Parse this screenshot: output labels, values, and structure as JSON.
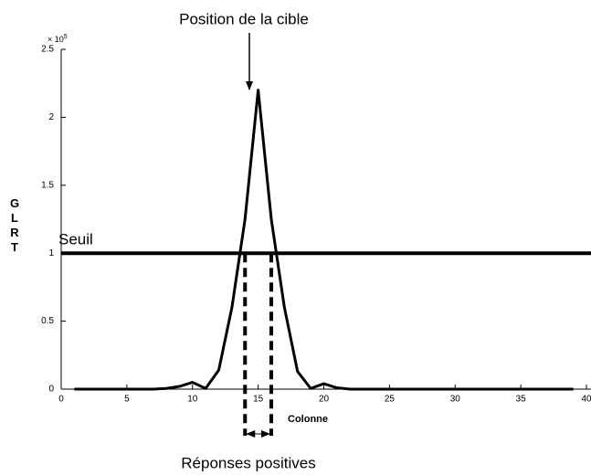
{
  "chart_data": {
    "type": "line",
    "title": "Position de la cible",
    "xlabel": "Colonne",
    "ylabel": "GLRT",
    "y_multiplier": {
      "base": "× 10",
      "exponent": "5"
    },
    "x": [
      1,
      2,
      3,
      4,
      5,
      6,
      7,
      8,
      9,
      10,
      11,
      12,
      13,
      14,
      15,
      16,
      17,
      18,
      19,
      20,
      21,
      22,
      23,
      24,
      25,
      26,
      27,
      28,
      29,
      30,
      31,
      32,
      33,
      34,
      35,
      36,
      37,
      38,
      39
    ],
    "series": [
      {
        "name": "GLRT",
        "color": "#000000",
        "values": [
          0,
          0,
          0,
          0,
          0,
          0,
          0,
          0.005,
          0.02,
          0.05,
          0.005,
          0.14,
          0.6,
          1.25,
          2.2,
          1.25,
          0.6,
          0.13,
          0.005,
          0.04,
          0.01,
          0,
          0,
          0,
          0,
          0,
          0,
          0,
          0,
          0,
          0,
          0,
          0,
          0,
          0,
          0,
          0,
          0,
          0
        ]
      }
    ],
    "threshold": {
      "label": "Seuil",
      "value": 1
    },
    "positive_range": {
      "label": "Réponses positives",
      "values": [
        14,
        16
      ]
    },
    "xlim": [
      0,
      40
    ],
    "xticks": [
      0,
      5,
      10,
      15,
      20,
      25,
      30,
      35,
      40
    ],
    "ylim": [
      0,
      2.5
    ],
    "yticks": [
      0,
      0.5,
      1,
      1.5,
      2,
      2.5
    ],
    "grid": false
  }
}
